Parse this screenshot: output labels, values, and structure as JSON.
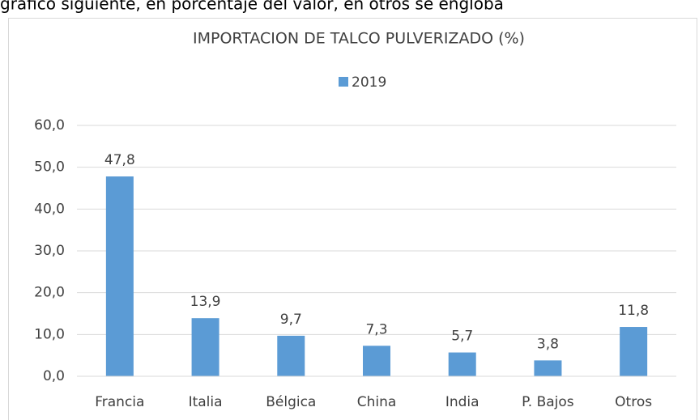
{
  "page_text": "gráfico siguiente, en porcentaje del valor, en otros se engloba",
  "chart_data": {
    "type": "bar",
    "title": "IMPORTACION DE TALCO PULVERIZADO (%)",
    "categories": [
      "Francia",
      "Italia",
      "Bélgica",
      "China",
      "India",
      "P. Bajos",
      "Otros"
    ],
    "series": [
      {
        "name": "2019",
        "color": "#5b9bd5",
        "values": [
          47.8,
          13.9,
          9.7,
          7.3,
          5.7,
          3.8,
          11.8
        ],
        "value_labels": [
          "47,8",
          "13,9",
          "9,7",
          "7,3",
          "5,7",
          "3,8",
          "11,8"
        ]
      }
    ],
    "ylim": [
      0,
      60
    ],
    "yticks": [
      {
        "value": 0,
        "label": "0,0"
      },
      {
        "value": 10,
        "label": "10,0"
      },
      {
        "value": 20,
        "label": "20,0"
      },
      {
        "value": 30,
        "label": "30,0"
      },
      {
        "value": 40,
        "label": "40,0"
      },
      {
        "value": 50,
        "label": "50,0"
      },
      {
        "value": 60,
        "label": "60,0"
      }
    ],
    "grid": true,
    "legend": "top"
  }
}
